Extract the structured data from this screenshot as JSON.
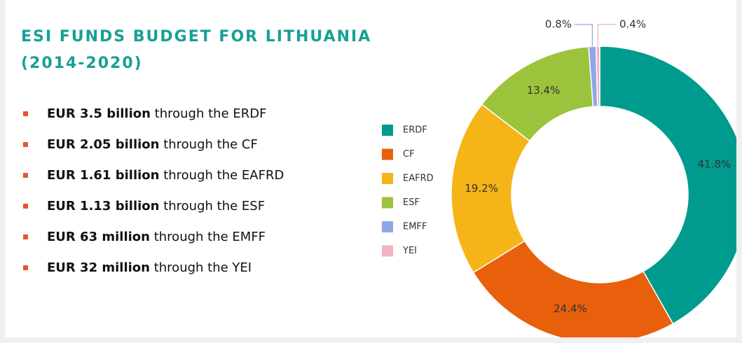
{
  "chart_data": {
    "type": "pie",
    "title": "ESI FUNDS BUDGET FOR LITHUANIA (2014-2020)",
    "donut": true,
    "categories": [
      "ERDF",
      "CF",
      "EAFRD",
      "ESF",
      "EMFF",
      "YEI"
    ],
    "values": [
      41.8,
      24.4,
      19.2,
      13.4,
      0.8,
      0.4
    ],
    "value_labels": [
      "41.8%",
      "24.4%",
      "19.2%",
      "13.4%",
      "0.8%",
      "0.4%"
    ],
    "colors": [
      "#009a8e",
      "#e8600c",
      "#f5b418",
      "#9bc33b",
      "#8fa6e6",
      "#f0b3c0"
    ],
    "legend": "left"
  },
  "list": [
    {
      "bold": "EUR 3.5 billion",
      "text": " through the ERDF"
    },
    {
      "bold": "EUR 2.05 billion",
      "text": " through the CF"
    },
    {
      "bold": "EUR 1.61 billion",
      "text": " through the EAFRD"
    },
    {
      "bold": "EUR 1.13 billion",
      "text": " through the ESF"
    },
    {
      "bold": "EUR 63 million",
      "text": " through the EMFF"
    },
    {
      "bold": "EUR 32 million",
      "text": " through the YEI"
    }
  ]
}
